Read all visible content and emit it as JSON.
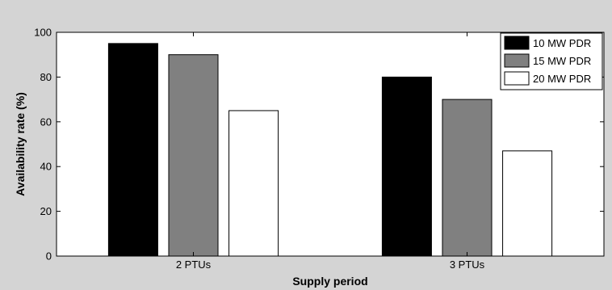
{
  "chart_data": {
    "type": "bar",
    "title": "",
    "xlabel": "Supply period",
    "ylabel": "Availability rate (%)",
    "categories": [
      "2 PTUs",
      "3 PTUs"
    ],
    "series": [
      {
        "name": "10 MW PDR",
        "values": [
          95,
          80
        ],
        "color": "#000000"
      },
      {
        "name": "15 MW PDR",
        "values": [
          90,
          70
        ],
        "color": "#808080"
      },
      {
        "name": "20 MW PDR",
        "values": [
          65,
          47
        ],
        "color": "#ffffff"
      }
    ],
    "ylim": [
      0,
      100
    ],
    "yticks": [
      0,
      20,
      40,
      60,
      80,
      100
    ],
    "ytick_labels": [
      "0",
      "20",
      "40",
      "60",
      "80",
      "100"
    ],
    "grid": false,
    "legend_position": "top-right"
  }
}
